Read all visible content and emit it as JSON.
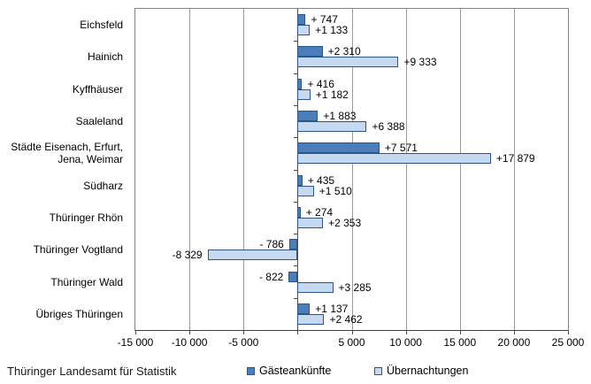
{
  "footer": {
    "source": "Thüringer Landesamt für Statistik"
  },
  "chart_data": {
    "type": "bar",
    "orientation": "horizontal",
    "title": "",
    "categories": [
      "Eichsfeld",
      "Hainich",
      "Kyffhäuser",
      "Saaleland",
      "Städte Eisenach, Erfurt,\nJena, Weimar",
      "Südharz",
      "Thüringer Rhön",
      "Thüringer Vogtland",
      "Thüringer Wald",
      "Übriges Thüringen"
    ],
    "series": [
      {
        "name": "Gästeankünfte",
        "color": "#4a7ebb",
        "border_color": "#2e5587",
        "values": [
          747,
          2310,
          416,
          1883,
          7571,
          435,
          274,
          -786,
          -822,
          1137
        ],
        "labels": [
          "+ 747",
          "+2 310",
          "+ 416",
          "+1 883",
          "+7 571",
          "+ 435",
          "+ 274",
          "- 786",
          "- 822",
          "+1 137"
        ]
      },
      {
        "name": "Übernachtungen",
        "color": "#c5d9f1",
        "border_color": "#2e5587",
        "values": [
          1133,
          9333,
          1182,
          6388,
          17879,
          1510,
          2353,
          -8329,
          3285,
          2462
        ],
        "labels": [
          "+1 133",
          "+9 333",
          "+1 182",
          "+6 388",
          "+17 879",
          "+1 510",
          "+2 353",
          "-8 329",
          "+3 285",
          "+2 462"
        ]
      }
    ],
    "xlim": [
      -15000,
      25000
    ],
    "x_ticks": [
      {
        "value": -15000,
        "label": "-15 000"
      },
      {
        "value": -10000,
        "label": "-10 000"
      },
      {
        "value": -5000,
        "label": "-5 000"
      },
      {
        "value": 0,
        "label": ""
      },
      {
        "value": 5000,
        "label": "5 000"
      },
      {
        "value": 10000,
        "label": "10 000"
      },
      {
        "value": 15000,
        "label": "15 000"
      },
      {
        "value": 20000,
        "label": "20 000"
      },
      {
        "value": 25000,
        "label": "25 000"
      }
    ],
    "grid": true,
    "legend_position": "bottom"
  }
}
